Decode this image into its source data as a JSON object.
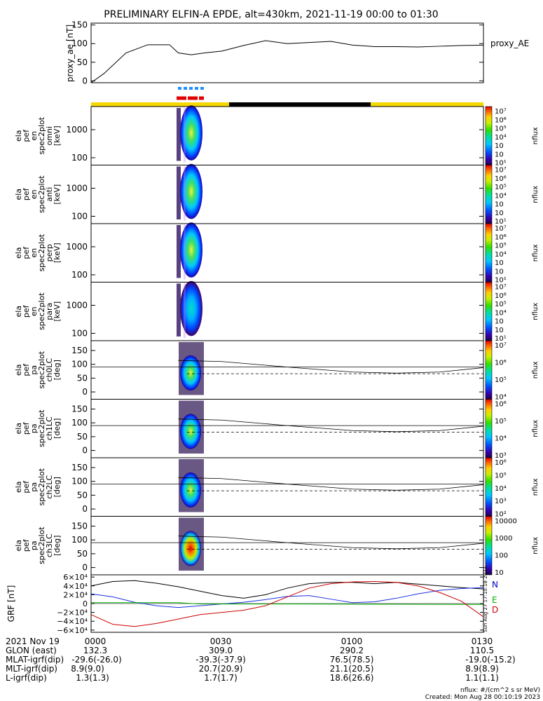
{
  "title": "PRELIMINARY ELFIN-A EPDE, alt=430km, 2021-11-19 00:00 to 01:30",
  "colors": {
    "black": "#000000",
    "cyan_bar": "#1e90ff",
    "red_bar": "#e00000",
    "yellow_bar": "#f5d800",
    "n_color": "#0000cc",
    "e_color": "#00b000",
    "d_color": "#cc0000"
  },
  "panels": [
    {
      "ylabel": [
        "ela",
        "pef",
        "en",
        "spec2plot",
        "omni",
        "[keV]"
      ],
      "zlabel": "nflux",
      "zticks": [
        "10⁷",
        "10⁶",
        "10⁵",
        "10⁴",
        "10⁳",
        "10⁲",
        "10¹"
      ],
      "yticks": [
        "1000",
        "100"
      ]
    },
    {
      "ylabel": [
        "ela",
        "pef",
        "en",
        "spec2plot",
        "anti",
        "[keV]"
      ],
      "zlabel": "nflux",
      "zticks": [
        "10⁷",
        "10⁶",
        "10⁵",
        "10⁴",
        "10⁳",
        "10⁲",
        "10¹"
      ],
      "yticks": [
        "1000",
        "100"
      ]
    },
    {
      "ylabel": [
        "ela",
        "pef",
        "en",
        "spec2plot",
        "perp",
        "[keV]"
      ],
      "zlabel": "nflux",
      "zticks": [
        "10⁷",
        "10⁶",
        "10⁵",
        "10⁴",
        "10⁳",
        "10⁲",
        "10¹"
      ],
      "yticks": [
        "1000",
        "100"
      ]
    },
    {
      "ylabel": [
        "ela",
        "pef",
        "en",
        "spec2plot",
        "para",
        "[keV]"
      ],
      "zlabel": "nflux",
      "zticks": [
        "10⁷",
        "10⁶",
        "10⁵",
        "10⁴",
        "10⁳",
        "10⁲",
        "10¹"
      ],
      "yticks": [
        "1000",
        "100"
      ]
    },
    {
      "ylabel": [
        "ela",
        "pef",
        "pa",
        "spec2plot",
        "ch0LC",
        "[deg]"
      ],
      "zlabel": "nflux",
      "zticks": [
        "10⁷",
        "10⁶",
        "10⁵",
        "10⁴"
      ],
      "yticks": [
        "150",
        "100",
        "50",
        "0"
      ]
    },
    {
      "ylabel": [
        "ela",
        "pef",
        "pa",
        "spec2plot",
        "ch1LC",
        "[deg]"
      ],
      "zlabel": "nflux",
      "zticks": [
        "10⁶",
        "10⁵",
        "10⁴",
        "10³"
      ],
      "yticks": [
        "150",
        "100",
        "50",
        "0"
      ]
    },
    {
      "ylabel": [
        "ela",
        "pef",
        "pa",
        "spec2plot",
        "ch2LC",
        "[deg]"
      ],
      "zlabel": "nflux",
      "zticks": [
        "10⁶",
        "10⁵",
        "10⁴",
        "10³",
        "10²"
      ],
      "yticks": [
        "150",
        "100",
        "50",
        "0"
      ]
    },
    {
      "ylabel": [
        "ela",
        "pef",
        "pa",
        "spec2plot",
        "ch3LC",
        "[deg]"
      ],
      "zlabel": "nflux",
      "zticks": [
        "10000",
        "1000",
        "100",
        "10"
      ],
      "yticks": [
        "150",
        "100",
        "50",
        "0"
      ]
    }
  ],
  "chart_data": [
    {
      "type": "line",
      "name": "proxy_ae",
      "ylabel": "proxy_ae [nT]",
      "legend": "proxy_AE",
      "ylim": [
        -5,
        155
      ],
      "yticks": [
        0,
        50,
        100,
        150
      ],
      "x_minutes": [
        0,
        3,
        8,
        13,
        18,
        20,
        23,
        26,
        30,
        35,
        40,
        45,
        50,
        55,
        60,
        65,
        70,
        75,
        80,
        85,
        90
      ],
      "values": [
        -5,
        20,
        75,
        97,
        97,
        75,
        70,
        75,
        80,
        95,
        108,
        100,
        103,
        106,
        96,
        92,
        92,
        91,
        93,
        95,
        96
      ]
    },
    {
      "type": "line",
      "name": "GRF",
      "ylabel": "GRF [nT]",
      "yticks": [
        "6×10⁴",
        "4×10⁴",
        "2×10⁴",
        "0",
        "−2×10⁴",
        "−4×10⁴",
        "−6×10⁴"
      ],
      "ylim": [
        -65000,
        65000
      ],
      "x_minutes": [
        0,
        5,
        10,
        15,
        20,
        25,
        30,
        35,
        40,
        45,
        50,
        55,
        60,
        65,
        70,
        75,
        80,
        85,
        90
      ],
      "series": [
        {
          "name": "N",
          "values": [
            40000,
            50000,
            52000,
            46000,
            38000,
            28000,
            18000,
            12000,
            20000,
            35000,
            45000,
            48000,
            48000,
            45000,
            48000,
            44000,
            40000,
            36000,
            33000
          ]
        },
        {
          "name": "E",
          "values": [
            22000,
            15000,
            3000,
            -5000,
            -9000,
            -5000,
            -1000,
            3000,
            9000,
            16000,
            18000,
            10000,
            2000,
            4000,
            12000,
            22000,
            30000,
            34000,
            36000
          ]
        },
        {
          "name": "D",
          "values": [
            -25000,
            -47000,
            -52000,
            -45000,
            -35000,
            -25000,
            -20000,
            -15000,
            -5000,
            15000,
            35000,
            45000,
            49000,
            50000,
            48000,
            40000,
            25000,
            5000,
            -30000
          ]
        }
      ]
    }
  ],
  "grf_labels": {
    "n": "N",
    "e": "E",
    "d": "D"
  },
  "time_axis": {
    "date": "2021 Nov 19",
    "ticks": [
      "0000",
      "0030",
      "0100",
      "0130"
    ]
  },
  "info_rows": [
    {
      "label": "GLON (east)",
      "values": [
        "132.3",
        "309.0",
        "290.2",
        "110.5"
      ]
    },
    {
      "label": "MLAT-igrf(dip)",
      "values": [
        "-29.6(-26.0)",
        "-39.3(-37.9)",
        "76.5(78.5)",
        "-19.0(-15.2)"
      ]
    },
    {
      "label": "MLT-igrf(dip)",
      "values": [
        "8.9(9.0)",
        "20.7(20.9)",
        "21.1(20.5)",
        "8.9(8.9)"
      ]
    },
    {
      "label": "L-igrf(dip)",
      "values": [
        "1.3(1.3)",
        "1.7(1.7)",
        "18.6(26.6)",
        "1.1(1.1)"
      ]
    }
  ],
  "footer": {
    "units": "nflux: #/(cm^2 s sr MeV)",
    "created": "Created: Mon Aug 28 00:10:19 2023",
    "side_stamp": "Sun Aug 27 17:10:18 2023"
  }
}
